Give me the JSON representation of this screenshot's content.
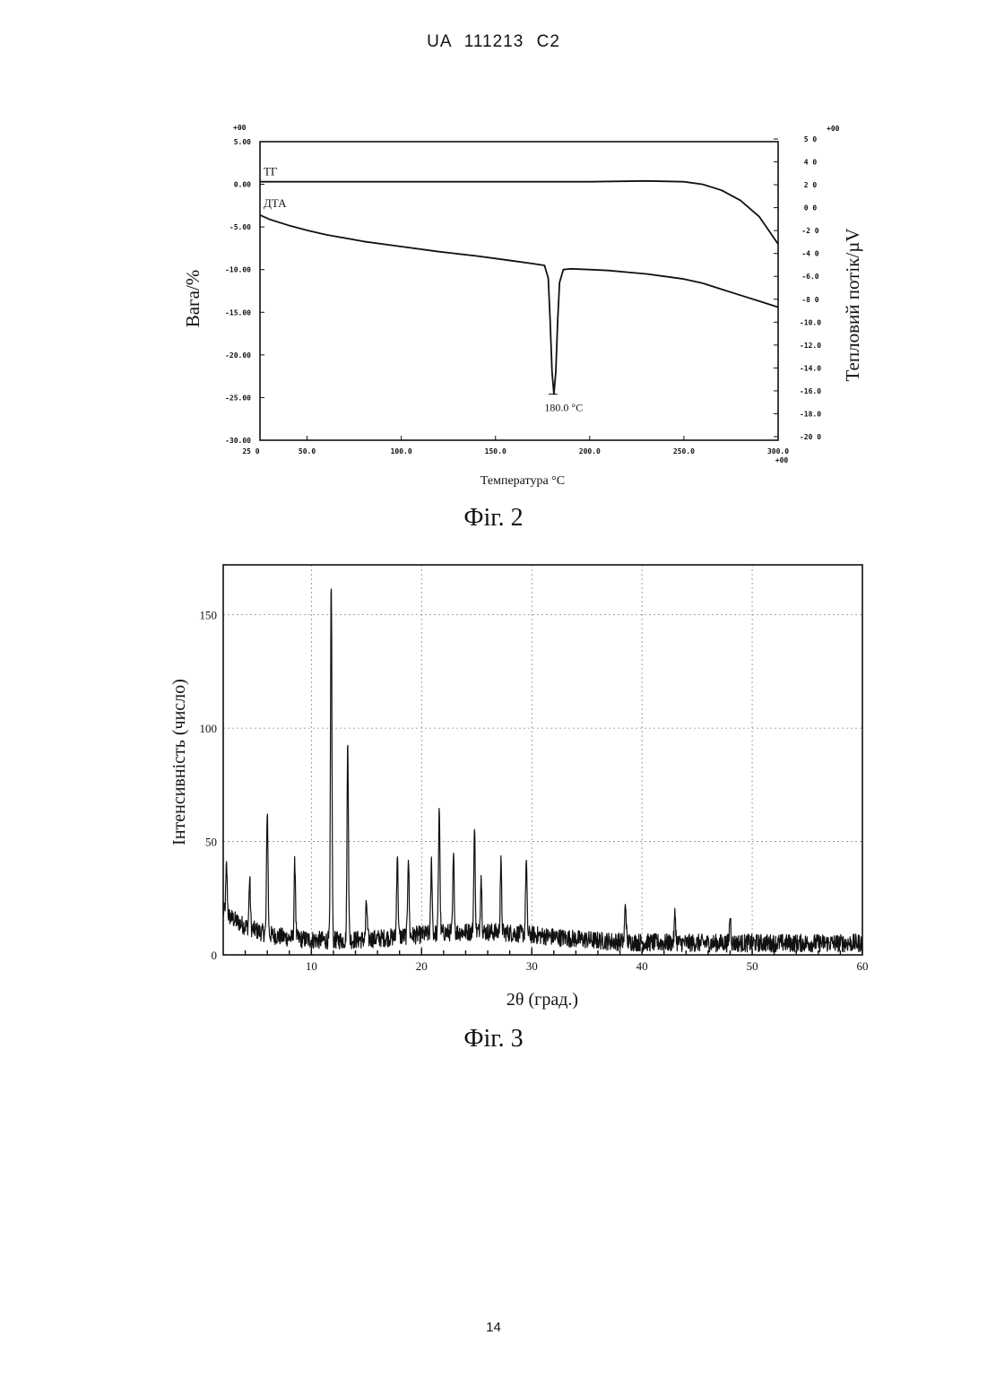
{
  "header": {
    "text": "UA   111213   C2"
  },
  "page_number": "14",
  "chart_data": [
    {
      "type": "line",
      "caption": "Фіг. 2",
      "xlabel": "Температура °C",
      "ylabel_left": "Вага/%",
      "ylabel_right": "Тепловий потік/µV",
      "xlim": [
        25,
        300
      ],
      "x_ticks": [
        {
          "value": 25,
          "label": "25 0"
        },
        {
          "value": 50,
          "label": "50.0"
        },
        {
          "value": 100,
          "label": "100.0"
        },
        {
          "value": 150,
          "label": "150.0"
        },
        {
          "value": 200,
          "label": "200.0"
        },
        {
          "value": 250,
          "label": "250.0"
        },
        {
          "value": 300,
          "label": "300.0"
        }
      ],
      "x_exp_label": "+00",
      "y_left_lim": [
        -30,
        5
      ],
      "y_left_exp_label": "+00",
      "y_left_ticks": [
        {
          "value": 5,
          "label": "5.00"
        },
        {
          "value": 0,
          "label": "0.00"
        },
        {
          "value": -5,
          "label": "-5.00"
        },
        {
          "value": -10,
          "label": "-10.00"
        },
        {
          "value": -15,
          "label": "-15.00"
        },
        {
          "value": -20,
          "label": "-20.00"
        },
        {
          "value": -25,
          "label": "-25.00"
        },
        {
          "value": -30,
          "label": "-30.00"
        }
      ],
      "y_right_exp_label": "+00",
      "y_right_ticks": [
        "5 0",
        "4 0",
        "2 0",
        "0 0",
        "-2 0",
        "-4 0",
        "-6.0",
        "-8 0",
        "-10.0",
        "-12.0",
        "-14.0",
        "-16.0",
        "-18.0",
        "-20 0"
      ],
      "series": [
        {
          "name": "ТГ",
          "axis": "left",
          "x": [
            25,
            50,
            100,
            150,
            200,
            230,
            250,
            260,
            270,
            280,
            290,
            300
          ],
          "y": [
            0.3,
            0.3,
            0.3,
            0.3,
            0.3,
            0.4,
            0.3,
            0.0,
            -0.7,
            -1.9,
            -3.8,
            -7.0
          ]
        },
        {
          "name": "ДТА",
          "axis": "left",
          "x": [
            25,
            30,
            40,
            50,
            60,
            80,
            100,
            120,
            140,
            150,
            160,
            170,
            176,
            178,
            179,
            180,
            181,
            182,
            183,
            184,
            186,
            190,
            200,
            210,
            220,
            230,
            240,
            250,
            260,
            270,
            280,
            290,
            300
          ],
          "y": [
            -3.6,
            -4.1,
            -4.8,
            -5.4,
            -5.9,
            -6.7,
            -7.3,
            -7.9,
            -8.4,
            -8.7,
            -9.0,
            -9.3,
            -9.5,
            -11.0,
            -16.0,
            -22.0,
            -24.6,
            -22.0,
            -16.0,
            -11.5,
            -10.0,
            -9.9,
            -10.0,
            -10.1,
            -10.3,
            -10.5,
            -10.8,
            -11.1,
            -11.6,
            -12.3,
            -13.0,
            -13.7,
            -14.4
          ]
        }
      ],
      "annotations": [
        {
          "text": "180.0 °C",
          "x": 180.5,
          "y": -24.6
        }
      ]
    },
    {
      "type": "line",
      "caption": "Фіг. 3",
      "xlabel": "2θ (град.)",
      "ylabel": "Інтенсивність (число)",
      "xlim": [
        2,
        60
      ],
      "ylim": [
        0,
        172
      ],
      "x_ticks": [
        10,
        20,
        30,
        40,
        50,
        60
      ],
      "y_ticks": [
        {
          "value": 0,
          "label": "0"
        },
        {
          "value": 50,
          "label": "50"
        },
        {
          "value": 100,
          "label": "100"
        },
        {
          "value": 150,
          "label": "150"
        }
      ],
      "grid": true,
      "peaks": [
        {
          "x": 2.3,
          "y": 38
        },
        {
          "x": 4.4,
          "y": 32
        },
        {
          "x": 6.0,
          "y": 63
        },
        {
          "x": 8.5,
          "y": 40
        },
        {
          "x": 11.8,
          "y": 165
        },
        {
          "x": 13.3,
          "y": 93
        },
        {
          "x": 15.0,
          "y": 22
        },
        {
          "x": 17.8,
          "y": 44
        },
        {
          "x": 18.8,
          "y": 43
        },
        {
          "x": 20.9,
          "y": 40
        },
        {
          "x": 21.6,
          "y": 65
        },
        {
          "x": 22.9,
          "y": 42
        },
        {
          "x": 24.8,
          "y": 54
        },
        {
          "x": 25.4,
          "y": 34
        },
        {
          "x": 27.2,
          "y": 39
        },
        {
          "x": 29.5,
          "y": 40
        },
        {
          "x": 38.5,
          "y": 22
        },
        {
          "x": 43.0,
          "y": 17
        },
        {
          "x": 48.0,
          "y": 16
        }
      ]
    }
  ]
}
